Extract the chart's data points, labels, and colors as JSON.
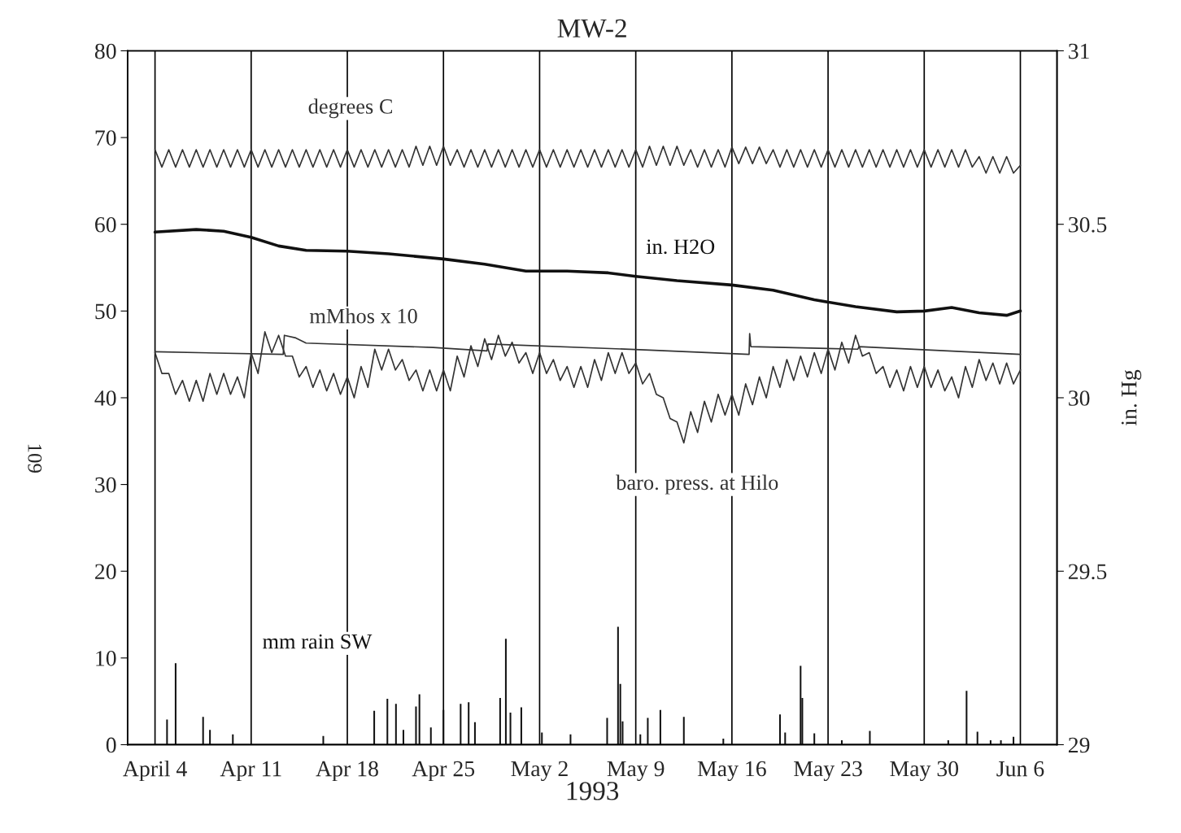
{
  "chart_data": {
    "type": "line",
    "title": "MW-2",
    "xlabel": "1993",
    "y2label": "in. Hg",
    "annotations": [
      "109"
    ],
    "xlim": [
      "1993-04-02",
      "1993-06-08T16:00"
    ],
    "xticks": [
      {
        "value": "1993-04-04",
        "label": "April 4"
      },
      {
        "value": "1993-04-11",
        "label": "Apr 11"
      },
      {
        "value": "1993-04-18",
        "label": "Apr 18"
      },
      {
        "value": "1993-04-25",
        "label": "Apr 25"
      },
      {
        "value": "1993-05-02",
        "label": "May 2"
      },
      {
        "value": "1993-05-09",
        "label": "May 9"
      },
      {
        "value": "1993-05-16",
        "label": "May 16"
      },
      {
        "value": "1993-05-23",
        "label": "May 23"
      },
      {
        "value": "1993-05-30",
        "label": "May 30"
      },
      {
        "value": "1993-06-06",
        "label": "Jun 6"
      }
    ],
    "ylim": [
      0,
      80
    ],
    "yticks": [
      0,
      10,
      20,
      30,
      40,
      50,
      60,
      70,
      80
    ],
    "y2lim": [
      29,
      31
    ],
    "y2ticks": [
      29,
      {
        "value": 29.5,
        "label": "29.5"
      },
      30,
      {
        "value": 30.5,
        "label": "30.5"
      },
      31
    ],
    "grid": "x",
    "x": [
      "1993-04-04T00:00",
      "1993-04-04T12:00",
      "1993-04-05T00:00",
      "1993-04-05T12:00",
      "1993-04-06T00:00",
      "1993-04-06T12:00",
      "1993-04-07T00:00",
      "1993-04-07T12:00",
      "1993-04-08T00:00",
      "1993-04-08T12:00",
      "1993-04-09T00:00",
      "1993-04-09T12:00",
      "1993-04-10T00:00",
      "1993-04-10T12:00",
      "1993-04-11T00:00",
      "1993-04-11T12:00",
      "1993-04-12T00:00",
      "1993-04-12T12:00",
      "1993-04-13T00:00",
      "1993-04-13T12:00",
      "1993-04-14T00:00",
      "1993-04-14T12:00",
      "1993-04-15T00:00",
      "1993-04-15T12:00",
      "1993-04-16T00:00",
      "1993-04-16T12:00",
      "1993-04-17T00:00",
      "1993-04-17T12:00",
      "1993-04-18T00:00",
      "1993-04-18T12:00",
      "1993-04-19T00:00",
      "1993-04-19T12:00",
      "1993-04-20T00:00",
      "1993-04-20T12:00",
      "1993-04-21T00:00",
      "1993-04-21T12:00",
      "1993-04-22T00:00",
      "1993-04-22T12:00",
      "1993-04-23T00:00",
      "1993-04-23T12:00",
      "1993-04-24T00:00",
      "1993-04-24T12:00",
      "1993-04-25T00:00",
      "1993-04-25T12:00",
      "1993-04-26T00:00",
      "1993-04-26T12:00",
      "1993-04-27T00:00",
      "1993-04-27T12:00",
      "1993-04-28T00:00",
      "1993-04-28T12:00",
      "1993-04-29T00:00",
      "1993-04-29T12:00",
      "1993-04-30T00:00",
      "1993-04-30T12:00",
      "1993-05-01T00:00",
      "1993-05-01T12:00",
      "1993-05-02T00:00",
      "1993-05-02T12:00",
      "1993-05-03T00:00",
      "1993-05-03T12:00",
      "1993-05-04T00:00",
      "1993-05-04T12:00",
      "1993-05-05T00:00",
      "1993-05-05T12:00",
      "1993-05-06T00:00",
      "1993-05-06T12:00",
      "1993-05-07T00:00",
      "1993-05-07T12:00",
      "1993-05-08T00:00",
      "1993-05-08T12:00",
      "1993-05-09T00:00",
      "1993-05-09T12:00",
      "1993-05-10T00:00",
      "1993-05-10T12:00",
      "1993-05-11T00:00",
      "1993-05-11T12:00",
      "1993-05-12T00:00",
      "1993-05-12T12:00",
      "1993-05-13T00:00",
      "1993-05-13T12:00",
      "1993-05-14T00:00",
      "1993-05-14T12:00",
      "1993-05-15T00:00",
      "1993-05-15T12:00",
      "1993-05-16T00:00",
      "1993-05-16T12:00",
      "1993-05-17T00:00",
      "1993-05-17T12:00",
      "1993-05-18T00:00",
      "1993-05-18T12:00",
      "1993-05-19T00:00",
      "1993-05-19T12:00",
      "1993-05-20T00:00",
      "1993-05-20T12:00",
      "1993-05-21T00:00",
      "1993-05-21T12:00",
      "1993-05-22T00:00",
      "1993-05-22T12:00",
      "1993-05-23T00:00",
      "1993-05-23T12:00",
      "1993-05-24T00:00",
      "1993-05-24T12:00",
      "1993-05-25T00:00",
      "1993-05-25T12:00",
      "1993-05-26T00:00",
      "1993-05-26T12:00",
      "1993-05-27T00:00",
      "1993-05-27T12:00",
      "1993-05-28T00:00",
      "1993-05-28T12:00",
      "1993-05-29T00:00",
      "1993-05-29T12:00",
      "1993-05-30T00:00",
      "1993-05-30T12:00",
      "1993-05-31T00:00",
      "1993-05-31T12:00",
      "1993-06-01T00:00",
      "1993-06-01T12:00",
      "1993-06-02T00:00",
      "1993-06-02T12:00",
      "1993-06-03T00:00",
      "1993-06-03T12:00",
      "1993-06-04T00:00",
      "1993-06-04T12:00",
      "1993-06-05T00:00",
      "1993-06-05T12:00",
      "1993-06-06T00:00"
    ],
    "series": [
      {
        "name": "degrees C",
        "color": "#333333",
        "values": [
          68.6,
          66.6,
          68.6,
          66.6,
          68.6,
          66.6,
          68.6,
          66.6,
          68.6,
          66.6,
          68.6,
          66.6,
          68.6,
          66.6,
          68.6,
          66.6,
          68.6,
          66.6,
          68.6,
          66.6,
          68.6,
          66.6,
          68.6,
          66.6,
          68.6,
          66.6,
          68.6,
          66.6,
          68.6,
          66.6,
          68.6,
          66.6,
          68.6,
          66.6,
          68.6,
          66.6,
          68.6,
          66.6,
          69.0,
          66.8,
          69.0,
          66.8,
          69.0,
          66.8,
          68.6,
          66.6,
          68.6,
          66.6,
          68.6,
          66.6,
          68.6,
          66.6,
          68.6,
          66.6,
          68.6,
          66.6,
          68.6,
          66.6,
          68.6,
          66.6,
          68.6,
          66.6,
          68.6,
          66.6,
          68.6,
          66.6,
          68.6,
          66.6,
          68.6,
          66.6,
          68.6,
          66.6,
          69.0,
          66.8,
          69.0,
          66.8,
          69.0,
          66.8,
          68.6,
          66.6,
          68.6,
          66.6,
          68.6,
          66.6,
          68.9,
          67.0,
          68.9,
          67.0,
          68.9,
          67.0,
          68.6,
          66.6,
          68.6,
          66.6,
          68.6,
          66.6,
          68.6,
          66.6,
          68.6,
          66.6,
          68.6,
          66.6,
          68.6,
          66.6,
          68.6,
          66.6,
          68.6,
          66.6,
          68.6,
          66.6,
          68.6,
          66.6,
          68.6,
          66.6,
          68.6,
          66.6,
          68.6,
          66.6,
          68.6,
          66.6,
          67.8,
          65.9,
          67.8,
          65.9,
          67.8,
          65.9,
          66.8
        ]
      },
      {
        "name": "in. H2O",
        "color": "#111111",
        "x": [
          "1993-04-04",
          "1993-04-07",
          "1993-04-09",
          "1993-04-11",
          "1993-04-13",
          "1993-04-15",
          "1993-04-18",
          "1993-04-21",
          "1993-04-25",
          "1993-04-28",
          "1993-05-01",
          "1993-05-04",
          "1993-05-07",
          "1993-05-09",
          "1993-05-12",
          "1993-05-16",
          "1993-05-19",
          "1993-05-22",
          "1993-05-25",
          "1993-05-28",
          "1993-05-30",
          "1993-06-01",
          "1993-06-03",
          "1993-06-05",
          "1993-06-06"
        ],
        "values": [
          59.1,
          59.4,
          59.2,
          58.5,
          57.5,
          57.0,
          56.9,
          56.6,
          56.0,
          55.4,
          54.6,
          54.6,
          54.4,
          54.0,
          53.5,
          53.0,
          52.4,
          51.3,
          50.5,
          49.9,
          50.0,
          50.4,
          49.8,
          49.5,
          50.0
        ]
      },
      {
        "name": "mMhos x 10",
        "color": "#333333",
        "x": [
          "1993-04-04",
          "1993-04-13T08:00",
          "1993-04-13T10:00",
          "1993-04-14T06:00",
          "1993-04-15",
          "1993-04-24T06:00",
          "1993-04-28T04:00",
          "1993-04-28T06:00",
          "1993-05-10",
          "1993-05-17T06:00",
          "1993-05-17T07:00",
          "1993-05-17T09:00",
          "1993-05-25T04:00",
          "1993-05-25T06:00",
          "1993-06-06"
        ],
        "values": [
          45.3,
          45.0,
          47.2,
          46.9,
          46.3,
          45.8,
          45.4,
          46.2,
          45.5,
          45.0,
          47.4,
          45.9,
          45.6,
          45.9,
          45.0
        ]
      },
      {
        "name": "baro. press. at Hilo",
        "color": "#333333",
        "axis": "y2",
        "values": [
          30.13,
          30.07,
          30.07,
          30.01,
          30.05,
          29.99,
          30.05,
          29.99,
          30.07,
          30.01,
          30.07,
          30.01,
          30.06,
          30.0,
          30.13,
          30.07,
          30.19,
          30.13,
          30.18,
          30.12,
          30.12,
          30.06,
          30.09,
          30.03,
          30.08,
          30.02,
          30.07,
          30.01,
          30.06,
          30.0,
          30.09,
          30.03,
          30.14,
          30.08,
          30.14,
          30.08,
          30.11,
          30.05,
          30.08,
          30.02,
          30.08,
          30.02,
          30.08,
          30.02,
          30.12,
          30.06,
          30.15,
          30.09,
          30.17,
          30.11,
          30.18,
          30.12,
          30.16,
          30.1,
          30.13,
          30.07,
          30.13,
          30.07,
          30.11,
          30.05,
          30.09,
          30.03,
          30.09,
          30.03,
          30.11,
          30.05,
          30.13,
          30.07,
          30.13,
          30.07,
          30.1,
          30.04,
          30.07,
          30.01,
          30.0,
          29.94,
          29.93,
          29.87,
          29.96,
          29.9,
          29.99,
          29.93,
          30.01,
          29.95,
          30.01,
          29.95,
          30.04,
          29.98,
          30.06,
          30.0,
          30.09,
          30.03,
          30.11,
          30.05,
          30.12,
          30.06,
          30.13,
          30.07,
          30.14,
          30.08,
          30.16,
          30.1,
          30.18,
          30.12,
          30.13,
          30.07,
          30.09,
          30.03,
          30.08,
          30.02,
          30.09,
          30.03,
          30.09,
          30.03,
          30.08,
          30.02,
          30.06,
          30.0,
          30.09,
          30.03,
          30.11,
          30.05,
          30.1,
          30.04,
          30.1,
          30.04,
          30.08
        ]
      },
      {
        "name": "mm rain SW",
        "type": "bar",
        "color": "#111111",
        "x": [
          "1993-04-04T21:00",
          "1993-04-05T12:00",
          "1993-04-07T12:00",
          "1993-04-08T00:00",
          "1993-04-09T16:00",
          "1993-04-16T06:00",
          "1993-04-19T23:00",
          "1993-04-20T22:00",
          "1993-04-21T13:00",
          "1993-04-22T02:00",
          "1993-04-23T00:00",
          "1993-04-23T06:00",
          "1993-04-24T02:00",
          "1993-04-25T00:00",
          "1993-04-26T06:00",
          "1993-04-26T20:00",
          "1993-04-27T07:00",
          "1993-04-29T03:00",
          "1993-04-29T13:00",
          "1993-04-29T21:00",
          "1993-04-30T16:00",
          "1993-05-02T04:00",
          "1993-05-04T06:00",
          "1993-05-06T22:00",
          "1993-05-07T17:00",
          "1993-05-07T21:00",
          "1993-05-08T01:00",
          "1993-05-09T08:00",
          "1993-05-09T21:00",
          "1993-05-10T19:00",
          "1993-05-12T12:00",
          "1993-05-15T09:00",
          "1993-05-19T12:00",
          "1993-05-19T21:00",
          "1993-05-21T00:00",
          "1993-05-21T03:00",
          "1993-05-22T00:00",
          "1993-05-24T00:00",
          "1993-05-26T01:00",
          "1993-05-31T18:00",
          "1993-06-02T02:00",
          "1993-06-02T21:00",
          "1993-06-03T20:00",
          "1993-06-04T14:00",
          "1993-06-05T12:00"
        ],
        "values": [
          2.9,
          9.4,
          3.2,
          1.7,
          1.2,
          1.0,
          3.9,
          5.3,
          4.7,
          1.7,
          4.4,
          5.8,
          2.0,
          4.0,
          4.7,
          4.9,
          2.6,
          5.4,
          12.2,
          3.7,
          4.3,
          1.4,
          1.2,
          3.1,
          13.6,
          7.0,
          2.7,
          1.2,
          3.1,
          4.0,
          3.2,
          0.7,
          3.5,
          1.4,
          9.1,
          5.4,
          1.3,
          0.5,
          1.6,
          0.5,
          6.2,
          1.5,
          0.5,
          0.5,
          0.9
        ]
      }
    ]
  }
}
